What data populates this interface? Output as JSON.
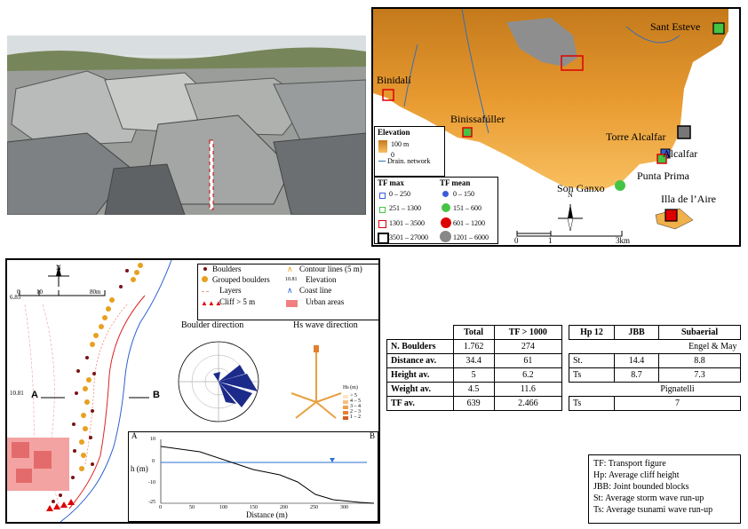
{
  "top_map": {
    "places": {
      "sant_esteve": "Sant Esteve",
      "binidali": "Binidalí",
      "binissafuller": "Binissafúller",
      "torre_alcalfar": "Torre Alcalfar",
      "alcalfar": "Alcalfar",
      "punta_prima": "Punta Prima",
      "son_ganxo": "Son Ganxo",
      "illa_aire": "Illa de l’Aire"
    },
    "elevation_legend": {
      "title": "Elevation",
      "high": "100 m",
      "low": "0",
      "drain": "Drain. network"
    },
    "tf_legend": {
      "max_title": "TF max",
      "mean_title": "TF mean",
      "max_items": [
        "0 – 250",
        "251 – 1300",
        "1301 – 3500",
        "3501 – 27000"
      ],
      "mean_items": [
        "0 – 150",
        "151 – 600",
        "601 – 1200",
        "1201 – 6000"
      ]
    },
    "north": "N",
    "scale": [
      "0",
      "1",
      "3km"
    ],
    "colors": {
      "land_low": "#f5b53c",
      "land_high": "#c47a1c",
      "sea": "#ffffff",
      "urban": "#909090"
    }
  },
  "bottom_map": {
    "north": "N",
    "scale": [
      "0",
      "10",
      "80m"
    ],
    "elev_label": "6.85",
    "section_a": "A",
    "section_b": "B",
    "section_elev": "10.81",
    "legend": {
      "boulders": "Boulders",
      "grouped": "Grouped boulders",
      "layers": "Layers",
      "cliff": "Cliff > 5 m",
      "contour": "Contour lines (5 m)",
      "elev_value": "10.81",
      "elevation": "Elevation",
      "coast": "Coast line",
      "urban": "Urban areas"
    },
    "boulder_dir_title": "Boulder direction",
    "hs_title": "Hs wave direction",
    "hs_legend": {
      "title": "Hs (m)",
      "items": [
        "> 5",
        "4 – 5",
        "3 – 4",
        "2 – 3",
        "1 – 2"
      ]
    },
    "profile": {
      "a": "A",
      "b": "B",
      "ylabel": "h (m)",
      "xlabel": "Distance (m)",
      "yticks": [
        "10",
        "0",
        "-10",
        "-25"
      ],
      "xticks": [
        "0",
        "50",
        "100",
        "150",
        "200",
        "250",
        "300"
      ]
    }
  },
  "table1": {
    "headers": [
      "",
      "Total",
      "TF > 1000"
    ],
    "rows": [
      [
        "N. Boulders",
        "1.762",
        "274"
      ],
      [
        "Distance av.",
        "34.4",
        "61"
      ],
      [
        "Height av.",
        "5",
        "6.2"
      ],
      [
        "Weight av.",
        "4.5",
        "11.6"
      ],
      [
        "TF av.",
        "639",
        "2.466"
      ]
    ]
  },
  "table2": {
    "headers": [
      "Hp 12",
      "JBB",
      "Subaerial"
    ],
    "engel": "Engel & May",
    "pignatelli": "Pignatelli",
    "rows": [
      [
        "St.",
        "14.4",
        "8.8"
      ],
      [
        "Ts",
        "8.7",
        "7.3"
      ]
    ],
    "pig_row": [
      "Ts",
      "7"
    ]
  },
  "definitions": [
    "TF: Transport figure",
    "Hp: Average cliff height",
    "JBB: Joint bounded blocks",
    "St: Average storm wave run-up",
    "Ts: Average tsunami wave run-up"
  ]
}
